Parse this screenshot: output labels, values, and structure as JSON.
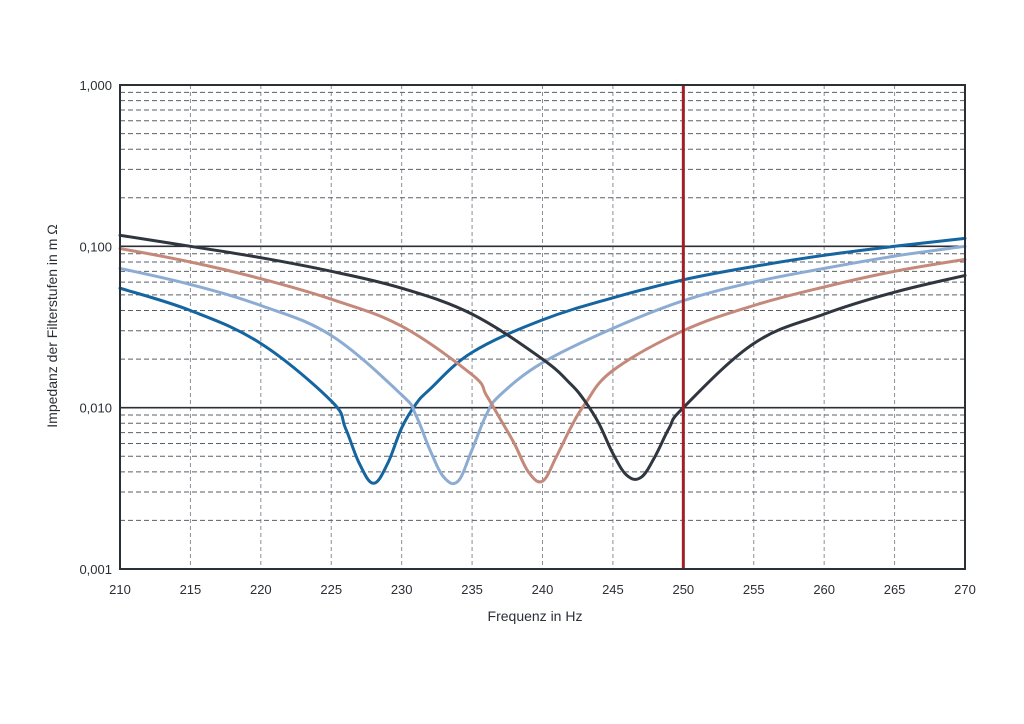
{
  "chart_data": {
    "type": "line",
    "xlabel": "Frequenz in Hz",
    "ylabel": "Impedanz der Filterstufen in m Ω",
    "xlim": [
      210,
      270
    ],
    "ylim": [
      0.001,
      1.0
    ],
    "yscale": "log",
    "grid": true,
    "x_ticks": [
      210,
      215,
      220,
      225,
      230,
      235,
      240,
      245,
      250,
      255,
      260,
      265,
      270
    ],
    "x_tick_labels": [
      "210",
      "215",
      "220",
      "225",
      "230",
      "235",
      "240",
      "245",
      "250",
      "255",
      "260",
      "265",
      "270"
    ],
    "y_ticks": [
      0.001,
      0.01,
      0.1,
      1.0
    ],
    "y_tick_labels": [
      "0,001",
      "0,010",
      "0,100",
      "1,000"
    ],
    "series": [
      {
        "color": "#1565a0",
        "x": [
          210,
          215,
          220,
          225,
          226,
          227,
          228,
          229,
          230,
          231,
          232,
          235,
          240,
          245,
          250,
          255,
          260,
          265,
          270
        ],
        "y": [
          0.055,
          0.04,
          0.025,
          0.011,
          0.0075,
          0.0045,
          0.0034,
          0.0045,
          0.0075,
          0.0105,
          0.013,
          0.022,
          0.035,
          0.048,
          0.062,
          0.075,
          0.088,
          0.1,
          0.112
        ]
      },
      {
        "color": "#8dacd3",
        "x": [
          210,
          215,
          220,
          225,
          230,
          231,
          232,
          233,
          234,
          235,
          236,
          237,
          240,
          245,
          250,
          255,
          260,
          265,
          270
        ],
        "y": [
          0.073,
          0.058,
          0.043,
          0.028,
          0.012,
          0.009,
          0.0055,
          0.0037,
          0.0035,
          0.0055,
          0.009,
          0.012,
          0.019,
          0.031,
          0.046,
          0.06,
          0.073,
          0.087,
          0.1
        ]
      },
      {
        "color": "#c4897a",
        "x": [
          210,
          215,
          220,
          225,
          230,
          235,
          236,
          237,
          238,
          239,
          240,
          241,
          242,
          243,
          245,
          250,
          255,
          260,
          265,
          270
        ],
        "y": [
          0.097,
          0.08,
          0.063,
          0.047,
          0.032,
          0.016,
          0.012,
          0.0085,
          0.006,
          0.004,
          0.0035,
          0.005,
          0.0075,
          0.0105,
          0.017,
          0.03,
          0.043,
          0.056,
          0.07,
          0.083
        ]
      },
      {
        "color": "#30363f",
        "x": [
          210,
          215,
          220,
          225,
          230,
          235,
          240,
          242,
          243,
          244,
          245,
          246,
          247,
          248,
          249,
          250,
          255,
          260,
          265,
          270
        ],
        "y": [
          0.117,
          0.1,
          0.085,
          0.07,
          0.055,
          0.038,
          0.02,
          0.014,
          0.011,
          0.008,
          0.0052,
          0.0038,
          0.0037,
          0.005,
          0.0075,
          0.01,
          0.025,
          0.038,
          0.052,
          0.066
        ]
      }
    ],
    "marker_line": {
      "x": 250,
      "color": "#a11f26"
    }
  }
}
